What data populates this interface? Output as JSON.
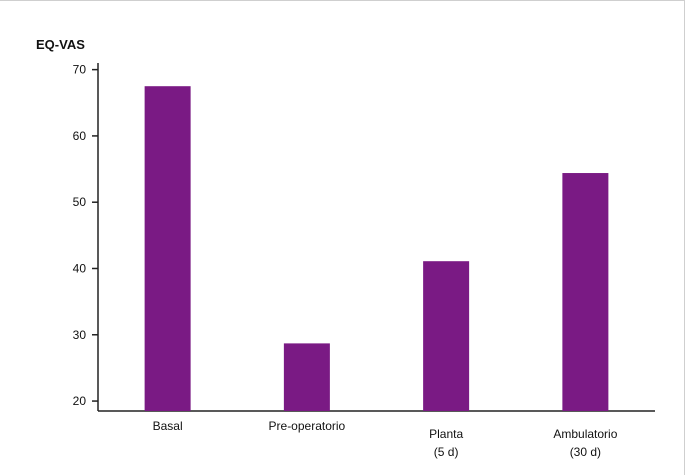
{
  "chart_data": {
    "type": "bar",
    "title": "",
    "xlabel": "",
    "ylabel": "EQ-VAS",
    "categories": [
      [
        "Basal"
      ],
      [
        "Pre-operatorio"
      ],
      [
        "Planta",
        "(5 d)"
      ],
      [
        "Ambulatorio",
        "(30 d)"
      ]
    ],
    "values": [
      67.5,
      28.7,
      41.1,
      54.4
    ],
    "ylim": [
      18.5,
      71
    ],
    "yticks": [
      20,
      30,
      40,
      50,
      60,
      70
    ],
    "bar_color": "#7a1a84",
    "grid": false,
    "legend": false
  }
}
